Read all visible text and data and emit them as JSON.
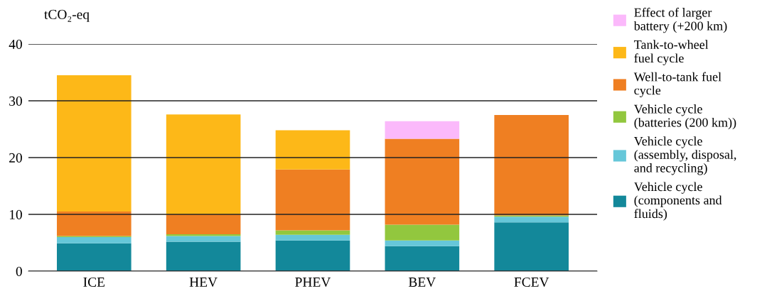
{
  "chart_data": {
    "type": "bar",
    "stacked": true,
    "ylabel": "tCO₂-eq",
    "categories": [
      "ICE",
      "HEV",
      "PHEV",
      "BEV",
      "FCEV"
    ],
    "ylim": [
      0,
      40
    ],
    "yticks": [
      0,
      10,
      20,
      30,
      40
    ],
    "grid": "y",
    "legend": "right",
    "series": [
      {
        "name": "Vehicle cycle\n(components and\nfluids)",
        "color": "#13889a",
        "values": [
          4.9,
          5.2,
          5.4,
          4.4,
          8.6
        ]
      },
      {
        "name": "Vehicle cycle\n(assembly, disposal,\nand recycling)",
        "color": "#66c7d9",
        "values": [
          1.1,
          1.0,
          1.0,
          1.0,
          1.0
        ]
      },
      {
        "name": "Vehicle cycle\n(batteries (200 km))",
        "color": "#92c73e",
        "values": [
          0.2,
          0.3,
          0.8,
          2.8,
          0.2
        ]
      },
      {
        "name": "Well-to-tank fuel\ncycle",
        "color": "#ef7f22",
        "values": [
          4.3,
          3.5,
          10.7,
          15.1,
          17.7
        ]
      },
      {
        "name": "Tank-to-wheel\nfuel cycle",
        "color": "#fdb818",
        "values": [
          24.0,
          17.6,
          6.9,
          null,
          null
        ]
      },
      {
        "name": "Effect of larger\nbattery (+200 km)",
        "color": "#fbb9fb",
        "values": [
          null,
          null,
          null,
          3.1,
          null
        ]
      }
    ]
  }
}
